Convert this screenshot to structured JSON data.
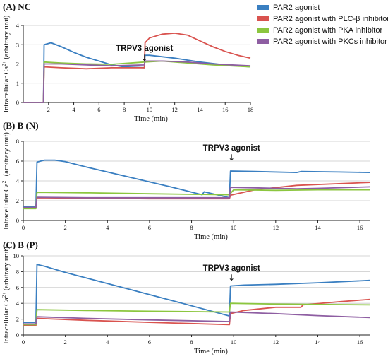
{
  "legend": {
    "entries": [
      {
        "name": "PAR2 agonist",
        "color": "#3a7fc1"
      },
      {
        "name": "PAR2 agonist with PLC-β inhibitor",
        "color": "#d9534f"
      },
      {
        "name": "PAR2 agonist  with PKA inhibitor",
        "color": "#8cc63f"
      },
      {
        "name": "PAR2 agonist with PKCs inhibitor",
        "color": "#8e5ea2"
      }
    ]
  },
  "ylabel_main": "Intracellular Ca",
  "ylabel_sup": "2+",
  "ylabel_tail": " (arbitrary unit)",
  "chart_data": [
    {
      "type": "line",
      "title": "(A) NC",
      "xlabel": "Time (min)",
      "xlim": [
        0,
        18
      ],
      "ylim": [
        0,
        4
      ],
      "xticks": [
        2,
        4,
        6,
        8,
        10,
        12,
        14,
        16,
        18
      ],
      "yticks": [
        0,
        1,
        2,
        3,
        4
      ],
      "annotation": {
        "text": "TRPV3 agonist",
        "arrow": "↓",
        "x": 9.6
      },
      "series": [
        {
          "name": "PAR2 agonist",
          "color": "#3a7fc1",
          "points": [
            [
              0,
              0
            ],
            [
              1.6,
              0
            ],
            [
              1.65,
              3.0
            ],
            [
              2.2,
              3.1
            ],
            [
              3,
              2.9
            ],
            [
              4,
              2.6
            ],
            [
              5,
              2.35
            ],
            [
              6,
              2.15
            ],
            [
              7,
              1.95
            ],
            [
              8,
              1.85
            ],
            [
              9.6,
              1.8
            ],
            [
              9.65,
              2.45
            ],
            [
              10,
              2.45
            ],
            [
              12,
              2.3
            ],
            [
              14,
              2.1
            ],
            [
              16,
              1.95
            ],
            [
              18,
              1.85
            ]
          ]
        },
        {
          "name": "PAR2 agonist with PLC-β inhibitor",
          "color": "#d9534f",
          "points": [
            [
              0,
              0
            ],
            [
              1.6,
              0
            ],
            [
              1.65,
              1.85
            ],
            [
              3,
              1.8
            ],
            [
              5,
              1.75
            ],
            [
              7,
              1.8
            ],
            [
              9.6,
              1.8
            ],
            [
              9.65,
              3.1
            ],
            [
              10,
              3.35
            ],
            [
              11,
              3.55
            ],
            [
              12,
              3.6
            ],
            [
              13,
              3.5
            ],
            [
              14,
              3.2
            ],
            [
              15,
              2.9
            ],
            [
              16,
              2.65
            ],
            [
              17,
              2.45
            ],
            [
              18,
              2.3
            ]
          ]
        },
        {
          "name": "PAR2 agonist  with PKA inhibitor",
          "color": "#8cc63f",
          "points": [
            [
              0,
              0
            ],
            [
              1.6,
              0
            ],
            [
              1.65,
              2.1
            ],
            [
              3,
              2.05
            ],
            [
              5,
              2.0
            ],
            [
              7,
              1.98
            ],
            [
              9.6,
              2.1
            ],
            [
              11,
              2.15
            ],
            [
              13,
              2.05
            ],
            [
              15,
              1.95
            ],
            [
              18,
              1.85
            ]
          ]
        },
        {
          "name": "PAR2 agonist with PKCs inhibitor",
          "color": "#8e5ea2",
          "points": [
            [
              0,
              0
            ],
            [
              1.6,
              0
            ],
            [
              1.65,
              2.0
            ],
            [
              3,
              2.0
            ],
            [
              5,
              1.95
            ],
            [
              7,
              1.9
            ],
            [
              9.6,
              1.95
            ],
            [
              9.65,
              2.15
            ],
            [
              11,
              2.15
            ],
            [
              13,
              2.1
            ],
            [
              15,
              2.0
            ],
            [
              18,
              1.9
            ]
          ]
        }
      ]
    },
    {
      "type": "line",
      "title": "(B) B (N)",
      "xlabel": "Time (min)",
      "xlim": [
        0,
        16.5
      ],
      "ylim": [
        0,
        8
      ],
      "xticks": [
        0,
        2,
        4,
        6,
        8,
        10,
        12,
        14,
        16
      ],
      "yticks": [
        0,
        2,
        4,
        6,
        8
      ],
      "annotation": {
        "text": "TRPV3 agonist",
        "arrow": "↓",
        "x": 9.9
      },
      "series": [
        {
          "name": "PAR2 agonist",
          "color": "#3a7fc1",
          "points": [
            [
              0,
              1.4
            ],
            [
              0.6,
              1.4
            ],
            [
              0.65,
              5.9
            ],
            [
              1,
              6.1
            ],
            [
              1.5,
              6.1
            ],
            [
              2,
              5.95
            ],
            [
              3,
              5.4
            ],
            [
              5,
              4.4
            ],
            [
              7,
              3.4
            ],
            [
              8.5,
              2.6
            ],
            [
              8.6,
              2.9
            ],
            [
              9.8,
              2.3
            ],
            [
              9.85,
              5.0
            ],
            [
              11,
              4.95
            ],
            [
              13,
              4.85
            ],
            [
              13.2,
              4.95
            ],
            [
              15,
              4.9
            ],
            [
              16.5,
              4.85
            ]
          ]
        },
        {
          "name": "PAR2 agonist with PLC-β inhibitor",
          "color": "#d9534f",
          "points": [
            [
              0,
              1.3
            ],
            [
              0.6,
              1.3
            ],
            [
              0.65,
              2.3
            ],
            [
              3,
              2.25
            ],
            [
              6,
              2.2
            ],
            [
              9.8,
              2.2
            ],
            [
              9.85,
              2.55
            ],
            [
              11,
              3.1
            ],
            [
              13,
              3.55
            ],
            [
              16.5,
              3.85
            ]
          ]
        },
        {
          "name": "PAR2 agonist  with PKA inhibitor",
          "color": "#8cc63f",
          "points": [
            [
              0,
              1.2
            ],
            [
              0.6,
              1.2
            ],
            [
              0.65,
              2.85
            ],
            [
              3,
              2.8
            ],
            [
              6,
              2.7
            ],
            [
              9.8,
              2.6
            ],
            [
              10,
              3.1
            ],
            [
              12,
              3.05
            ],
            [
              14,
              3.1
            ],
            [
              16.5,
              3.1
            ]
          ]
        },
        {
          "name": "PAR2 agonist with PKCs inhibitor",
          "color": "#8e5ea2",
          "points": [
            [
              0,
              1.3
            ],
            [
              0.6,
              1.3
            ],
            [
              0.65,
              2.35
            ],
            [
              3,
              2.3
            ],
            [
              6,
              2.3
            ],
            [
              9.8,
              2.3
            ],
            [
              9.85,
              3.35
            ],
            [
              11,
              3.3
            ],
            [
              13,
              3.2
            ],
            [
              14,
              3.25
            ],
            [
              16.5,
              3.4
            ]
          ]
        }
      ]
    },
    {
      "type": "line",
      "title": "(C) B (P)",
      "xlabel": "Time (min)",
      "xlim": [
        0,
        16.5
      ],
      "ylim": [
        0,
        10
      ],
      "xticks": [
        0,
        2,
        4,
        6,
        8,
        10,
        12,
        14,
        16
      ],
      "yticks": [
        0,
        2,
        4,
        6,
        8,
        10
      ],
      "annotation": {
        "text": "TRPV3 agonist",
        "arrow": "↓",
        "x": 9.9
      },
      "series": [
        {
          "name": "PAR2 agonist",
          "color": "#3a7fc1",
          "points": [
            [
              0,
              1.6
            ],
            [
              0.6,
              1.6
            ],
            [
              0.65,
              8.9
            ],
            [
              1,
              8.7
            ],
            [
              2,
              7.9
            ],
            [
              3,
              7.2
            ],
            [
              5,
              5.8
            ],
            [
              7,
              4.4
            ],
            [
              9.8,
              2.4
            ],
            [
              9.85,
              6.2
            ],
            [
              10.5,
              6.3
            ],
            [
              12,
              6.4
            ],
            [
              14,
              6.6
            ],
            [
              16.5,
              6.9
            ]
          ]
        },
        {
          "name": "PAR2 agonist with PLC-β inhibitor",
          "color": "#d9534f",
          "points": [
            [
              0,
              1.2
            ],
            [
              0.6,
              1.2
            ],
            [
              0.65,
              2.1
            ],
            [
              3,
              1.85
            ],
            [
              6,
              1.6
            ],
            [
              9.8,
              1.3
            ],
            [
              9.85,
              2.7
            ],
            [
              10.5,
              3.1
            ],
            [
              12,
              3.5
            ],
            [
              13.2,
              3.5
            ],
            [
              13.3,
              3.8
            ],
            [
              15,
              4.2
            ],
            [
              16.5,
              4.5
            ]
          ]
        },
        {
          "name": "PAR2 agonist  with PKA inhibitor",
          "color": "#8cc63f",
          "points": [
            [
              0,
              1.3
            ],
            [
              0.6,
              1.3
            ],
            [
              0.65,
              3.2
            ],
            [
              3,
              3.1
            ],
            [
              6,
              3.0
            ],
            [
              9.8,
              2.9
            ],
            [
              9.85,
              4.0
            ],
            [
              12,
              3.9
            ],
            [
              16.5,
              3.8
            ]
          ]
        },
        {
          "name": "PAR2 agonist with PKCs inhibitor",
          "color": "#8e5ea2",
          "points": [
            [
              0,
              1.4
            ],
            [
              0.6,
              1.4
            ],
            [
              0.65,
              2.3
            ],
            [
              3,
              2.1
            ],
            [
              6,
              1.9
            ],
            [
              9.8,
              1.7
            ],
            [
              9.85,
              2.9
            ],
            [
              12,
              2.7
            ],
            [
              14,
              2.45
            ],
            [
              16.5,
              2.2
            ]
          ]
        }
      ]
    }
  ]
}
